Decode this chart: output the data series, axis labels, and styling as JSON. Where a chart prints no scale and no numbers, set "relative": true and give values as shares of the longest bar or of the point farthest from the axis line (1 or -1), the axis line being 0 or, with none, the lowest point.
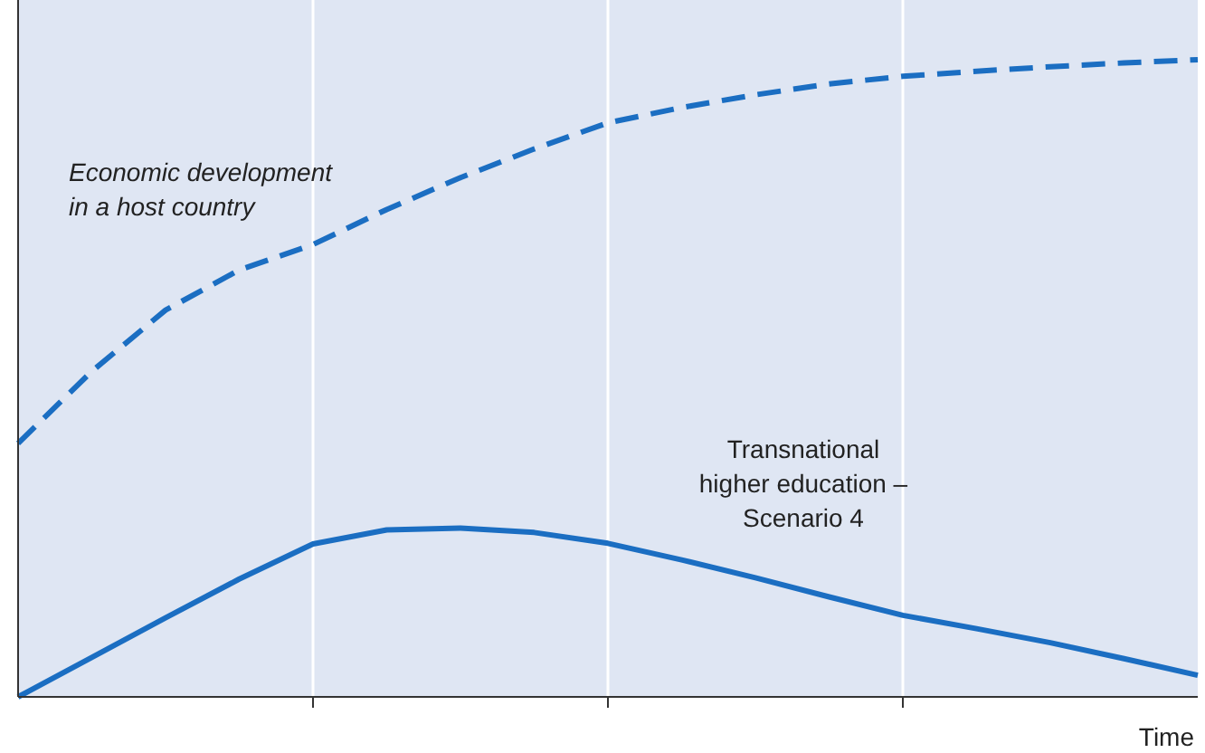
{
  "chart_data": {
    "type": "line",
    "relative": true,
    "xlabel": "Time",
    "categories": [
      null,
      null,
      null,
      null,
      null,
      null,
      null,
      null,
      null,
      null,
      null,
      null,
      null,
      null,
      null,
      null,
      null
    ],
    "grid": "x",
    "series": [
      {
        "name": "Economic development in a host country",
        "color": "#1b6ec2",
        "line_style": "dashed",
        "values": [
          0.398,
          0.511,
          0.607,
          0.67,
          0.71,
          0.765,
          0.815,
          0.86,
          0.901,
          0.925,
          0.945,
          0.962,
          0.974,
          0.982,
          0.989,
          0.995,
          1
        ]
      },
      {
        "name": "Transnational higher education – Scenario 4",
        "color": "#1b6ec2",
        "line_style": "solid",
        "values": [
          0,
          0.062,
          0.124,
          0.185,
          0.24,
          0.262,
          0.265,
          0.258,
          0.241,
          0.215,
          0.187,
          0.157,
          0.128,
          0.107,
          0.085,
          0.06,
          0.034
        ]
      }
    ]
  }
}
